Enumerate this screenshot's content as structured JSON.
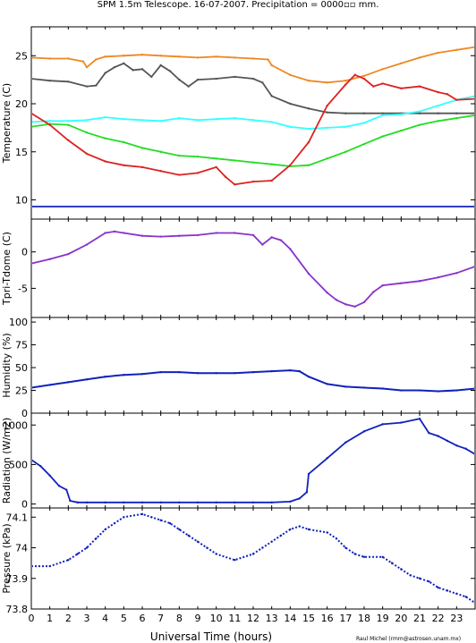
{
  "title": "SPM 1.5m Telescope. 16-07-2007. Precipitation = 0000▫▫ mm.",
  "xlabel": "Universal Time (hours)",
  "credit": "Raul Michel (rmm@astrosen.unam.mx)",
  "chart_data": [
    {
      "type": "scatter",
      "ylabel": "Temperature (C)",
      "xlim": [
        0,
        24
      ],
      "ylim": [
        8,
        28
      ],
      "yticks": [
        10,
        15,
        20,
        25
      ],
      "series": [
        {
          "color": "#ee8822",
          "x": [
            0,
            1,
            2,
            2.8,
            3,
            3.5,
            4,
            5,
            6,
            7,
            8,
            9,
            10,
            11,
            12,
            12.8,
            13,
            14,
            15,
            16,
            17,
            18,
            19,
            20,
            21,
            22,
            23,
            24
          ],
          "y": [
            24.8,
            24.7,
            24.7,
            24.4,
            23.8,
            24.6,
            24.9,
            25.0,
            25.1,
            25.0,
            24.9,
            24.8,
            24.9,
            24.8,
            24.7,
            24.6,
            24.0,
            23.0,
            22.4,
            22.2,
            22.4,
            22.9,
            23.6,
            24.2,
            24.8,
            25.3,
            25.6,
            25.9
          ]
        },
        {
          "color": "#555555",
          "x": [
            0,
            1,
            2,
            3,
            3.5,
            4,
            4.5,
            5,
            5.5,
            6,
            6.5,
            7,
            7.5,
            8,
            8.5,
            9,
            10,
            11,
            12,
            12.5,
            13,
            14,
            15,
            16,
            17,
            18,
            19,
            20,
            21,
            22,
            23,
            24
          ],
          "y": [
            22.6,
            22.4,
            22.3,
            21.8,
            21.9,
            23.2,
            23.8,
            24.2,
            23.5,
            23.6,
            22.8,
            24.0,
            23.4,
            22.5,
            21.8,
            22.5,
            22.6,
            22.8,
            22.6,
            22.2,
            20.8,
            20.0,
            19.5,
            19.1,
            19.0,
            19.0,
            19.0,
            19.0,
            19.0,
            19.0,
            19.0,
            19.0
          ]
        },
        {
          "color": "#33ffff",
          "x": [
            0,
            1,
            2,
            3,
            4,
            5,
            6,
            7,
            8,
            9,
            10,
            11,
            12,
            13,
            14,
            15,
            16,
            17,
            18,
            19,
            20,
            21,
            22,
            23,
            24
          ],
          "y": [
            18.1,
            18.2,
            18.2,
            18.3,
            18.6,
            18.4,
            18.3,
            18.2,
            18.5,
            18.3,
            18.4,
            18.5,
            18.3,
            18.1,
            17.6,
            17.4,
            17.5,
            17.6,
            18.0,
            18.8,
            18.9,
            19.2,
            19.8,
            20.4,
            20.8
          ]
        },
        {
          "color": "#22dd22",
          "x": [
            0,
            1,
            2,
            3,
            4,
            5,
            6,
            7,
            8,
            9,
            10,
            11,
            12,
            13,
            14,
            15,
            16,
            17,
            18,
            19,
            20,
            21,
            22,
            23,
            24
          ],
          "y": [
            17.6,
            17.9,
            17.8,
            17.0,
            16.4,
            16.0,
            15.4,
            15.0,
            14.6,
            14.5,
            14.3,
            14.1,
            13.9,
            13.7,
            13.5,
            13.6,
            14.3,
            15.0,
            15.8,
            16.6,
            17.2,
            17.8,
            18.2,
            18.5,
            18.8
          ]
        },
        {
          "color": "#dd2222",
          "x": [
            0,
            1,
            2,
            3,
            4,
            5,
            6,
            7,
            8,
            9,
            10,
            10.5,
            11,
            12,
            13,
            14,
            15,
            16,
            17,
            17.5,
            18,
            18.5,
            19,
            20,
            21,
            22,
            22.5,
            23,
            24
          ],
          "y": [
            19.0,
            17.8,
            16.2,
            14.8,
            14.0,
            13.6,
            13.4,
            13.0,
            12.6,
            12.8,
            13.4,
            12.4,
            11.6,
            11.9,
            12.0,
            13.6,
            16.0,
            19.8,
            22.0,
            23.0,
            22.6,
            21.8,
            22.1,
            21.6,
            21.8,
            21.2,
            21.0,
            20.4,
            20.5
          ]
        },
        {
          "color": "#1122bb",
          "x": [
            0,
            24
          ],
          "y": [
            9.3,
            9.3
          ]
        }
      ]
    },
    {
      "type": "scatter",
      "ylabel": "Tpri-Tdome (C)",
      "xlim": [
        0,
        24
      ],
      "ylim": [
        -9,
        4.5
      ],
      "yticks": [
        -5,
        0
      ],
      "series": [
        {
          "color": "#8833cc",
          "x": [
            0,
            1,
            2,
            3,
            4,
            4.5,
            5,
            6,
            7,
            8,
            9,
            10,
            11,
            12,
            12.5,
            13,
            13.5,
            14,
            15,
            16,
            16.5,
            17,
            17.5,
            18,
            18.5,
            19,
            20,
            21,
            22,
            23,
            24
          ],
          "y": [
            -1.6,
            -1.0,
            -0.3,
            1.0,
            2.6,
            2.8,
            2.6,
            2.2,
            2.1,
            2.2,
            2.3,
            2.6,
            2.6,
            2.3,
            1.0,
            2.0,
            1.6,
            0.4,
            -3.0,
            -5.6,
            -6.6,
            -7.2,
            -7.5,
            -6.9,
            -5.5,
            -4.6,
            -4.3,
            -4.0,
            -3.5,
            -2.9,
            -2.0
          ]
        }
      ]
    },
    {
      "type": "line",
      "ylabel": "Humidity (%)",
      "xlim": [
        0,
        24
      ],
      "ylim": [
        0,
        105
      ],
      "yticks": [
        0,
        25,
        50,
        75,
        100
      ],
      "series": [
        {
          "color": "#1122bb",
          "x": [
            0,
            1,
            2,
            3,
            4,
            5,
            6,
            7,
            8,
            9,
            10,
            11,
            12,
            13,
            14,
            14.5,
            15,
            16,
            17,
            18,
            19,
            20,
            21,
            22,
            23,
            24
          ],
          "y": [
            28,
            31,
            34,
            37,
            40,
            42,
            43,
            45,
            45,
            44,
            44,
            44,
            45,
            46,
            47,
            46,
            40,
            32,
            29,
            28,
            27,
            25,
            25,
            24,
            25,
            27
          ]
        }
      ]
    },
    {
      "type": "scatter",
      "ylabel": "Radiation (W/m2)",
      "xlim": [
        0,
        24
      ],
      "ylim": [
        -50,
        1150
      ],
      "yticks": [
        0,
        500,
        1000
      ],
      "series": [
        {
          "color": "#1122bb",
          "x": [
            0,
            0.5,
            1,
            1.5,
            1.9,
            2.1,
            2.5,
            3,
            4,
            5,
            6,
            7,
            8,
            9,
            10,
            11,
            12,
            13,
            14,
            14.5,
            14.9,
            15,
            16,
            17,
            18,
            19,
            20,
            21,
            21.5,
            22,
            22.5,
            23,
            23.5,
            24
          ],
          "y": [
            560,
            480,
            360,
            230,
            180,
            40,
            20,
            20,
            20,
            20,
            20,
            20,
            20,
            20,
            20,
            20,
            20,
            20,
            30,
            70,
            150,
            380,
            580,
            780,
            920,
            1010,
            1030,
            1080,
            900,
            860,
            800,
            740,
            700,
            630
          ]
        }
      ]
    },
    {
      "type": "scatter",
      "ylabel": "Pressure (kPa)",
      "xlim": [
        0,
        24
      ],
      "ylim": [
        73.8,
        74.13
      ],
      "yticks": [
        73.8,
        73.9,
        74.0,
        74.1
      ],
      "yticklabels": [
        "73.8",
        "73.9",
        "74",
        "74.1"
      ],
      "series": [
        {
          "color": "#1122bb",
          "x": [
            0,
            1,
            2,
            2.5,
            3,
            3.5,
            4,
            4.5,
            5,
            6,
            6.5,
            7,
            7.5,
            8,
            8.5,
            9,
            9.5,
            10,
            11,
            12,
            12.5,
            13,
            13.5,
            14,
            14.5,
            15,
            16,
            16.5,
            17,
            17.5,
            18,
            19,
            19.5,
            20,
            20.5,
            21,
            21.5,
            22,
            22.5,
            23,
            23.5,
            24
          ],
          "y": [
            73.94,
            73.94,
            73.96,
            73.98,
            74.0,
            74.03,
            74.06,
            74.08,
            74.1,
            74.11,
            74.1,
            74.09,
            74.08,
            74.06,
            74.04,
            74.02,
            74.0,
            73.98,
            73.96,
            73.98,
            74.0,
            74.02,
            74.04,
            74.06,
            74.07,
            74.06,
            74.05,
            74.03,
            74.0,
            73.98,
            73.97,
            73.97,
            73.95,
            73.93,
            73.91,
            73.9,
            73.89,
            73.87,
            73.86,
            73.85,
            73.84,
            73.82
          ]
        }
      ]
    }
  ],
  "xticks": [
    0,
    1,
    2,
    3,
    4,
    5,
    6,
    7,
    8,
    9,
    10,
    11,
    12,
    13,
    14,
    15,
    16,
    17,
    18,
    19,
    20,
    21,
    22,
    23
  ]
}
